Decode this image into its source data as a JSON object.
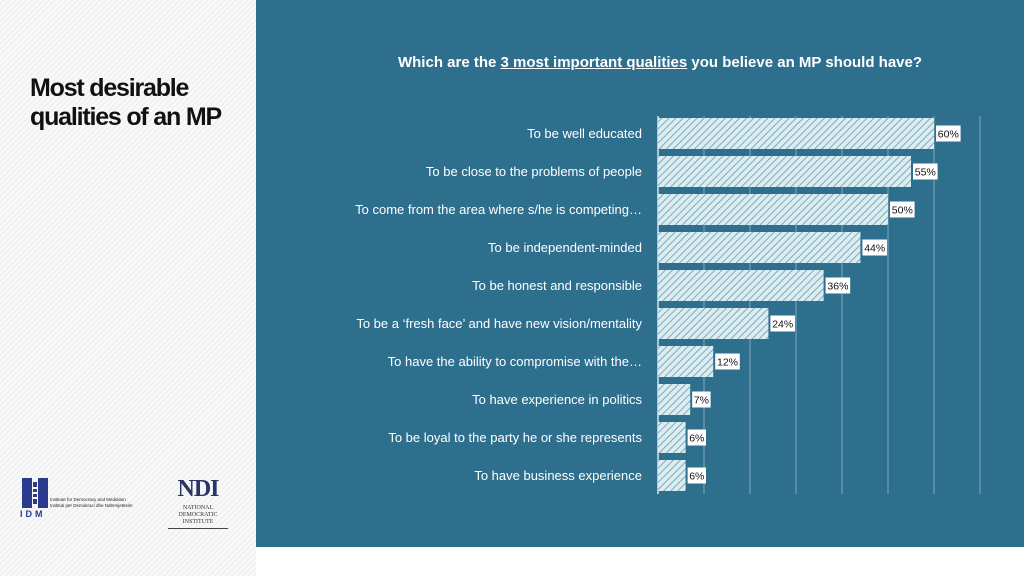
{
  "slide": {
    "title": "Most desirable qualities of an MP"
  },
  "logos": {
    "idm_acronym": "IDM",
    "idm_name_line1": "Institute for Democracy and Mediation",
    "idm_name_line2": "Instituti për Demokraci dhe Ndërmjetësim",
    "ndi_mark": "NDI",
    "ndi_line1": "NATIONAL",
    "ndi_line2": "DEMOCRATIC",
    "ndi_line3": "INSTITUTE"
  },
  "chart_data": {
    "type": "bar",
    "orientation": "horizontal",
    "title_before": "Which are the ",
    "title_highlight": "3 most important qualities",
    "title_after": " you believe an MP should have?",
    "categories": [
      "To be well educated",
      "To be close to the problems of people",
      "To come from the area where s/he is competing…",
      "To be independent-minded",
      "To be honest and responsible",
      "To be a ‘fresh face’ and have new vision/mentality",
      "To have the ability to compromise with the…",
      "To have experience in politics",
      "To be loyal to the party he or she represents",
      "To have business experience"
    ],
    "values": [
      60,
      55,
      50,
      44,
      36,
      24,
      12,
      7,
      6,
      6
    ],
    "value_labels": [
      "60%",
      "55%",
      "50%",
      "44%",
      "36%",
      "24%",
      "12%",
      "7%",
      "6%",
      "6%"
    ],
    "unit": "%",
    "xlim": [
      0,
      70
    ],
    "grid": true,
    "legend": "none",
    "colors": {
      "background": "#2f6f8e",
      "bar_fill": "#dcecf1",
      "bar_hatch": "#5f9db1",
      "gridline": "#7fa9bc",
      "label_box": "#ffffff"
    }
  }
}
